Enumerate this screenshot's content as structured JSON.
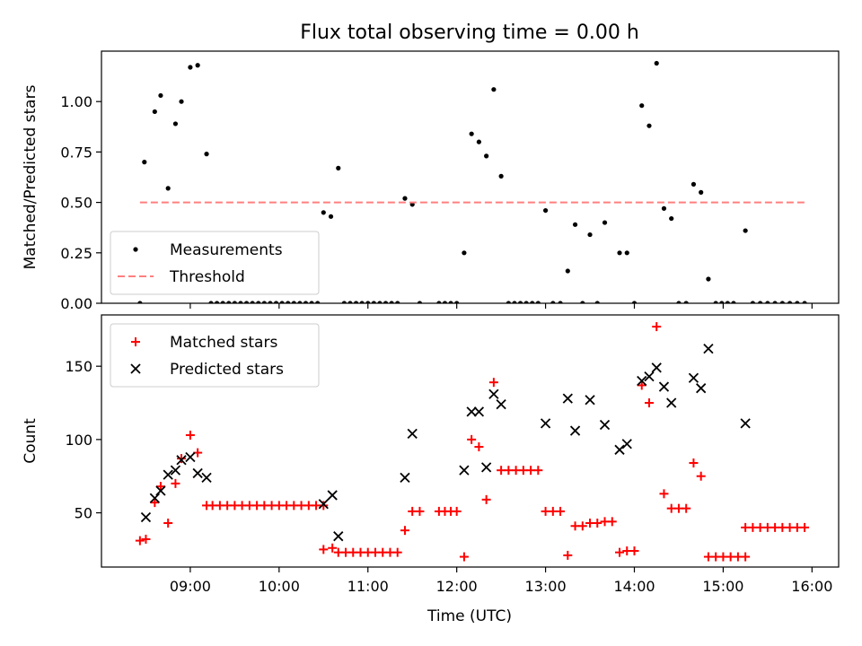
{
  "chart_data": {
    "title": "Flux total observing time = 0.00 h",
    "xlabel": "Time (UTC)",
    "x_range": [
      "08:00",
      "16:18"
    ],
    "x_ticks": [
      "09:00",
      "10:00",
      "11:00",
      "12:00",
      "13:00",
      "14:00",
      "15:00",
      "16:00"
    ],
    "colors": {
      "measurements": "#000000",
      "threshold": "#ff7f7f",
      "matched": "#ff0000",
      "predicted": "#000000"
    },
    "panels": [
      {
        "type": "scatter",
        "ylabel": "Matched/Predicted stars",
        "ylim": [
          0,
          1.25
        ],
        "y_ticks": [
          "0.00",
          "0.25",
          "0.50",
          "0.75",
          "1.00"
        ],
        "legend": "lower-left",
        "series": [
          {
            "name": "Measurements",
            "kind": "dot",
            "points": [
              [
                "08:26",
                0
              ],
              [
                "08:29",
                0.7
              ],
              [
                "08:36",
                0.95
              ],
              [
                "08:40",
                1.03
              ],
              [
                "08:45",
                0.57
              ],
              [
                "08:50",
                0.89
              ],
              [
                "08:54",
                1.0
              ],
              [
                "09:00",
                1.17
              ],
              [
                "09:05",
                1.18
              ],
              [
                "09:11",
                0.74
              ],
              [
                "09:14",
                0
              ],
              [
                "09:18",
                0
              ],
              [
                "09:22",
                0
              ],
              [
                "09:26",
                0
              ],
              [
                "09:30",
                0
              ],
              [
                "09:34",
                0
              ],
              [
                "09:38",
                0
              ],
              [
                "09:42",
                0
              ],
              [
                "09:46",
                0
              ],
              [
                "09:50",
                0
              ],
              [
                "09:54",
                0
              ],
              [
                "09:58",
                0
              ],
              [
                "10:02",
                0
              ],
              [
                "10:06",
                0
              ],
              [
                "10:10",
                0
              ],
              [
                "10:14",
                0
              ],
              [
                "10:18",
                0
              ],
              [
                "10:22",
                0
              ],
              [
                "10:26",
                0
              ],
              [
                "10:30",
                0.45
              ],
              [
                "10:35",
                0.43
              ],
              [
                "10:40",
                0.67
              ],
              [
                "10:44",
                0
              ],
              [
                "10:48",
                0
              ],
              [
                "10:52",
                0
              ],
              [
                "10:56",
                0
              ],
              [
                "11:00",
                0
              ],
              [
                "11:04",
                0
              ],
              [
                "11:08",
                0
              ],
              [
                "11:12",
                0
              ],
              [
                "11:16",
                0
              ],
              [
                "11:20",
                0
              ],
              [
                "11:25",
                0.52
              ],
              [
                "11:30",
                0.49
              ],
              [
                "11:35",
                0
              ],
              [
                "11:48",
                0
              ],
              [
                "11:52",
                0
              ],
              [
                "11:56",
                0
              ],
              [
                "12:00",
                0
              ],
              [
                "12:05",
                0.25
              ],
              [
                "12:10",
                0.84
              ],
              [
                "12:15",
                0.8
              ],
              [
                "12:20",
                0.73
              ],
              [
                "12:25",
                1.06
              ],
              [
                "12:30",
                0.63
              ],
              [
                "12:35",
                0
              ],
              [
                "12:39",
                0
              ],
              [
                "12:43",
                0
              ],
              [
                "12:47",
                0
              ],
              [
                "12:51",
                0
              ],
              [
                "12:55",
                0
              ],
              [
                "13:00",
                0.46
              ],
              [
                "13:05",
                0
              ],
              [
                "13:10",
                0
              ],
              [
                "13:15",
                0.16
              ],
              [
                "13:20",
                0.39
              ],
              [
                "13:25",
                0
              ],
              [
                "13:30",
                0.34
              ],
              [
                "13:35",
                0
              ],
              [
                "13:40",
                0.4
              ],
              [
                "13:50",
                0.25
              ],
              [
                "13:55",
                0.25
              ],
              [
                "14:00",
                0
              ],
              [
                "14:05",
                0.98
              ],
              [
                "14:10",
                0.88
              ],
              [
                "14:15",
                1.19
              ],
              [
                "14:20",
                0.47
              ],
              [
                "14:25",
                0.42
              ],
              [
                "14:30",
                0
              ],
              [
                "14:35",
                0
              ],
              [
                "14:40",
                0.59
              ],
              [
                "14:45",
                0.55
              ],
              [
                "14:50",
                0.12
              ],
              [
                "14:55",
                0
              ],
              [
                "14:59",
                0
              ],
              [
                "15:03",
                0
              ],
              [
                "15:07",
                0
              ],
              [
                "15:15",
                0.36
              ],
              [
                "15:20",
                0
              ],
              [
                "15:25",
                0
              ],
              [
                "15:30",
                0
              ],
              [
                "15:35",
                0
              ],
              [
                "15:40",
                0
              ],
              [
                "15:45",
                0
              ],
              [
                "15:50",
                0
              ],
              [
                "15:55",
                0
              ]
            ]
          },
          {
            "name": "Threshold",
            "kind": "dashed-line",
            "points": [
              [
                "08:26",
                0.5
              ],
              [
                "15:55",
                0.5
              ]
            ]
          }
        ]
      },
      {
        "type": "scatter",
        "ylabel": "Count",
        "ylim": [
          13,
          185
        ],
        "y_ticks": [
          "50",
          "100",
          "150"
        ],
        "legend": "upper-left",
        "series": [
          {
            "name": "Matched stars",
            "kind": "plus",
            "points": [
              [
                "08:26",
                31
              ],
              [
                "08:30",
                32
              ],
              [
                "08:36",
                57
              ],
              [
                "08:40",
                68
              ],
              [
                "08:45",
                43
              ],
              [
                "08:50",
                70
              ],
              [
                "08:54",
                87
              ],
              [
                "09:00",
                103
              ],
              [
                "09:05",
                91
              ],
              [
                "09:11",
                55
              ],
              [
                "09:15",
                55
              ],
              [
                "09:20",
                55
              ],
              [
                "09:25",
                55
              ],
              [
                "09:30",
                55
              ],
              [
                "09:35",
                55
              ],
              [
                "09:40",
                55
              ],
              [
                "09:45",
                55
              ],
              [
                "09:50",
                55
              ],
              [
                "09:55",
                55
              ],
              [
                "10:00",
                55
              ],
              [
                "10:05",
                55
              ],
              [
                "10:10",
                55
              ],
              [
                "10:15",
                55
              ],
              [
                "10:20",
                55
              ],
              [
                "10:25",
                55
              ],
              [
                "10:30",
                55
              ],
              [
                "10:30",
                25
              ],
              [
                "10:36",
                26
              ],
              [
                "10:40",
                23
              ],
              [
                "10:45",
                23
              ],
              [
                "10:50",
                23
              ],
              [
                "10:55",
                23
              ],
              [
                "11:00",
                23
              ],
              [
                "11:05",
                23
              ],
              [
                "11:10",
                23
              ],
              [
                "11:15",
                23
              ],
              [
                "11:20",
                23
              ],
              [
                "11:25",
                38
              ],
              [
                "11:30",
                51
              ],
              [
                "11:35",
                51
              ],
              [
                "11:48",
                51
              ],
              [
                "11:52",
                51
              ],
              [
                "11:56",
                51
              ],
              [
                "12:00",
                51
              ],
              [
                "12:05",
                20
              ],
              [
                "12:10",
                100
              ],
              [
                "12:15",
                95
              ],
              [
                "12:20",
                59
              ],
              [
                "12:25",
                139
              ],
              [
                "12:30",
                79
              ],
              [
                "12:35",
                79
              ],
              [
                "12:40",
                79
              ],
              [
                "12:45",
                79
              ],
              [
                "12:50",
                79
              ],
              [
                "12:55",
                79
              ],
              [
                "13:00",
                51
              ],
              [
                "13:05",
                51
              ],
              [
                "13:10",
                51
              ],
              [
                "13:15",
                21
              ],
              [
                "13:20",
                41
              ],
              [
                "13:25",
                41
              ],
              [
                "13:30",
                43
              ],
              [
                "13:35",
                43
              ],
              [
                "13:40",
                44
              ],
              [
                "13:45",
                44
              ],
              [
                "13:50",
                23
              ],
              [
                "13:55",
                24
              ],
              [
                "14:00",
                24
              ],
              [
                "14:05",
                137
              ],
              [
                "14:10",
                125
              ],
              [
                "14:15",
                177
              ],
              [
                "14:20",
                63
              ],
              [
                "14:25",
                53
              ],
              [
                "14:30",
                53
              ],
              [
                "14:35",
                53
              ],
              [
                "14:40",
                84
              ],
              [
                "14:45",
                75
              ],
              [
                "14:50",
                20
              ],
              [
                "14:55",
                20
              ],
              [
                "15:00",
                20
              ],
              [
                "15:05",
                20
              ],
              [
                "15:10",
                20
              ],
              [
                "15:15",
                20
              ],
              [
                "15:15",
                40
              ],
              [
                "15:20",
                40
              ],
              [
                "15:25",
                40
              ],
              [
                "15:30",
                40
              ],
              [
                "15:35",
                40
              ],
              [
                "15:40",
                40
              ],
              [
                "15:45",
                40
              ],
              [
                "15:50",
                40
              ],
              [
                "15:55",
                40
              ]
            ]
          },
          {
            "name": "Predicted stars",
            "kind": "x",
            "points": [
              [
                "08:30",
                47
              ],
              [
                "08:36",
                60
              ],
              [
                "08:40",
                65
              ],
              [
                "08:45",
                76
              ],
              [
                "08:50",
                79
              ],
              [
                "08:54",
                86
              ],
              [
                "09:00",
                88
              ],
              [
                "09:05",
                77
              ],
              [
                "09:11",
                74
              ],
              [
                "10:30",
                56
              ],
              [
                "10:36",
                62
              ],
              [
                "10:40",
                34
              ],
              [
                "11:25",
                74
              ],
              [
                "11:30",
                104
              ],
              [
                "12:05",
                79
              ],
              [
                "12:10",
                119
              ],
              [
                "12:15",
                119
              ],
              [
                "12:20",
                81
              ],
              [
                "12:25",
                131
              ],
              [
                "12:30",
                124
              ],
              [
                "13:00",
                111
              ],
              [
                "13:15",
                128
              ],
              [
                "13:20",
                106
              ],
              [
                "13:30",
                127
              ],
              [
                "13:40",
                110
              ],
              [
                "13:50",
                93
              ],
              [
                "13:55",
                97
              ],
              [
                "14:05",
                140
              ],
              [
                "14:10",
                143
              ],
              [
                "14:15",
                149
              ],
              [
                "14:20",
                136
              ],
              [
                "14:25",
                125
              ],
              [
                "14:40",
                142
              ],
              [
                "14:45",
                135
              ],
              [
                "14:50",
                162
              ],
              [
                "15:15",
                111
              ]
            ]
          }
        ]
      }
    ]
  }
}
